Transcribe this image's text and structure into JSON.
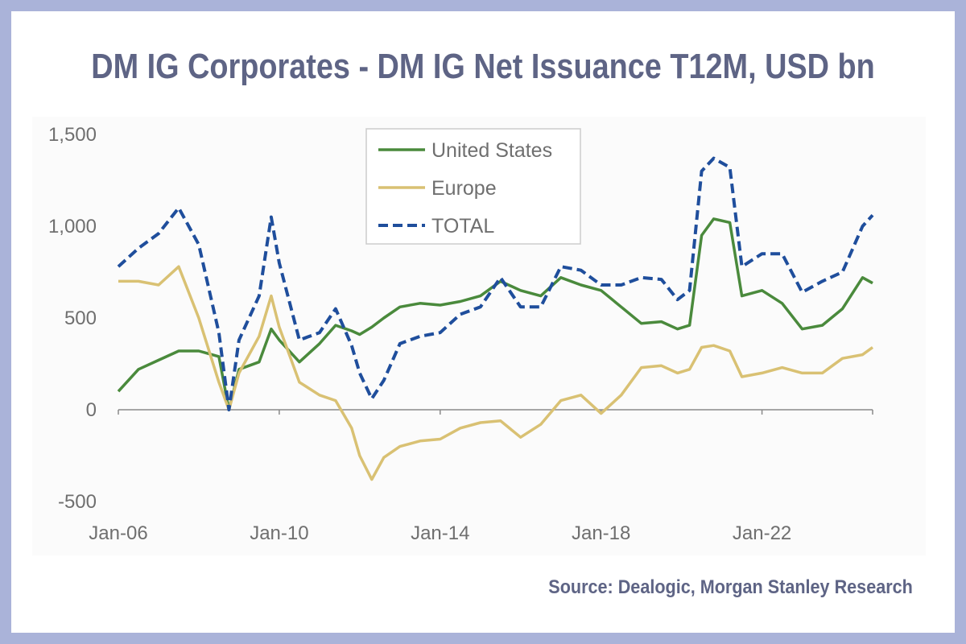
{
  "chart_data": {
    "type": "line",
    "title": "DM IG Corporates - DM IG Net Issuance T12M, USD bn",
    "source": "Source: Dealogic, Morgan Stanley Research",
    "xlabel": "",
    "ylabel": "",
    "ylim": [
      -500,
      1500
    ],
    "yticks": [
      "1,500",
      "1,000",
      "500",
      "0",
      "-500"
    ],
    "ytick_values": [
      1500,
      1000,
      500,
      0,
      -500
    ],
    "xticks": [
      "Jan-06",
      "Jan-10",
      "Jan-14",
      "Jan-18",
      "Jan-22"
    ],
    "xtick_values": [
      2006,
      2010,
      2014,
      2018,
      2022
    ],
    "xlim": [
      2006,
      2024.75
    ],
    "legend_position": "top-center",
    "grid": false,
    "x": [
      2006.0,
      2006.5,
      2007.0,
      2007.5,
      2008.0,
      2008.5,
      2008.75,
      2009.0,
      2009.5,
      2009.8,
      2010.0,
      2010.5,
      2011.0,
      2011.4,
      2011.8,
      2012.0,
      2012.3,
      2012.6,
      2013.0,
      2013.5,
      2014.0,
      2014.5,
      2015.0,
      2015.5,
      2016.0,
      2016.5,
      2017.0,
      2017.5,
      2018.0,
      2018.5,
      2019.0,
      2019.5,
      2019.9,
      2020.2,
      2020.5,
      2020.8,
      2021.2,
      2021.5,
      2022.0,
      2022.5,
      2023.0,
      2023.5,
      2024.0,
      2024.5,
      2024.75
    ],
    "series": [
      {
        "name": "United States",
        "color": "#4a8a3c",
        "dash": "solid",
        "values": [
          100,
          220,
          270,
          320,
          320,
          290,
          0,
          220,
          260,
          440,
          380,
          260,
          360,
          460,
          430,
          410,
          450,
          500,
          560,
          580,
          570,
          590,
          620,
          700,
          650,
          620,
          720,
          680,
          650,
          560,
          470,
          480,
          440,
          460,
          950,
          1040,
          1020,
          620,
          650,
          580,
          440,
          460,
          550,
          720,
          690
        ]
      },
      {
        "name": "Europe",
        "color": "#d9c173",
        "dash": "solid",
        "values": [
          700,
          700,
          680,
          780,
          500,
          150,
          0,
          200,
          400,
          620,
          450,
          150,
          80,
          50,
          -100,
          -250,
          -380,
          -260,
          -200,
          -170,
          -160,
          -100,
          -70,
          -60,
          -150,
          -80,
          50,
          80,
          -20,
          80,
          230,
          240,
          200,
          220,
          340,
          350,
          320,
          180,
          200,
          230,
          200,
          200,
          280,
          300,
          340
        ]
      },
      {
        "name": "TOTAL",
        "color": "#1f4e9c",
        "dash": "dashed",
        "values": [
          780,
          880,
          960,
          1100,
          900,
          420,
          0,
          380,
          620,
          1050,
          800,
          380,
          420,
          550,
          350,
          200,
          60,
          160,
          360,
          400,
          420,
          520,
          560,
          720,
          560,
          560,
          780,
          760,
          680,
          680,
          720,
          710,
          600,
          650,
          1300,
          1370,
          1320,
          780,
          850,
          850,
          640,
          700,
          750,
          1000,
          1060
        ]
      }
    ]
  }
}
